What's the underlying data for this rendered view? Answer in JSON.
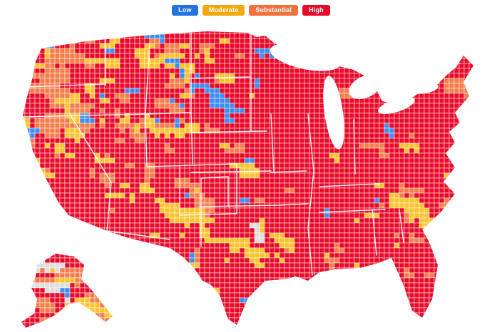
{
  "legend": {
    "items": [
      {
        "id": "low",
        "label": "Low",
        "color": "#2273e0"
      },
      {
        "id": "moderate",
        "label": "Moderate",
        "color": "#f0a90e"
      },
      {
        "id": "substantial",
        "label": "Substantial",
        "color": "#f2703c"
      },
      {
        "id": "high",
        "label": "High",
        "color": "#e70b2a"
      }
    ]
  },
  "map": {
    "dominant_level": "High",
    "regions": [
      "contiguous-us",
      "alaska"
    ],
    "levels": {
      "high": "#ea0b2a",
      "substantial": "#f57d4a",
      "moderate": "#fdc32e",
      "low": "#3e8df4",
      "no_data": "#dddddd"
    },
    "border_color": "#ffffff"
  }
}
